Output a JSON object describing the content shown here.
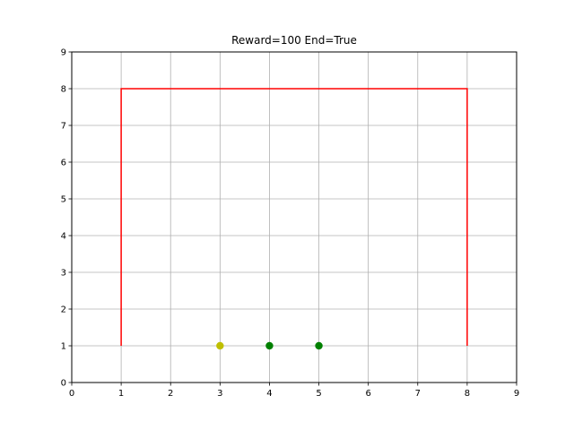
{
  "chart_data": {
    "type": "line",
    "title": "Reward=100 End=True",
    "xlabel": "",
    "ylabel": "",
    "xlim": [
      0,
      9
    ],
    "ylim": [
      0,
      9
    ],
    "xticks": [
      "0",
      "1",
      "2",
      "3",
      "4",
      "5",
      "6",
      "7",
      "8",
      "9"
    ],
    "yticks": [
      "0",
      "1",
      "2",
      "3",
      "4",
      "5",
      "6",
      "7",
      "8",
      "9"
    ],
    "grid": true,
    "legend": "none",
    "series": [
      {
        "kind": "line",
        "color": "#ff0000",
        "x": [
          1,
          1,
          8,
          8
        ],
        "y": [
          1,
          8,
          8,
          1
        ]
      },
      {
        "kind": "scatter",
        "color": "#bfbf00",
        "x": [
          3
        ],
        "y": [
          1
        ]
      },
      {
        "kind": "scatter",
        "color": "#008000",
        "x": [
          4,
          5
        ],
        "y": [
          1,
          1
        ]
      }
    ]
  }
}
